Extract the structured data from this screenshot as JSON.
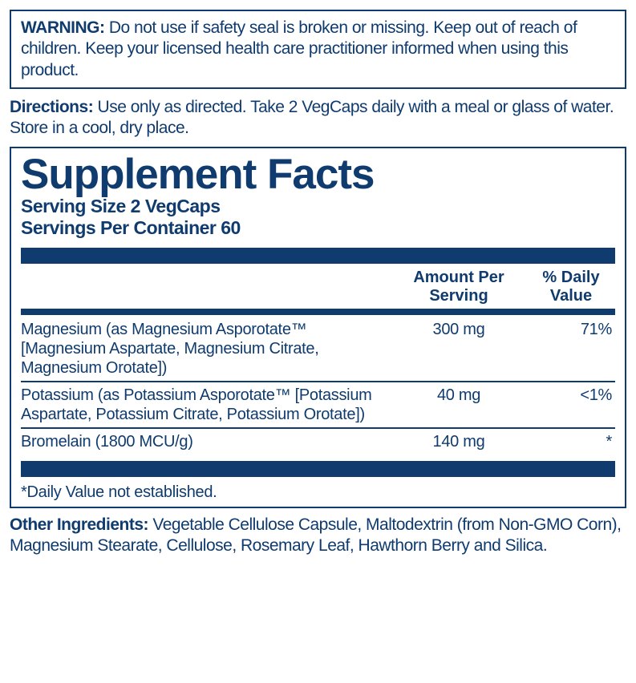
{
  "warning": {
    "label": "WARNING:",
    "text": " Do not use if safety seal is broken or missing. Keep out of reach of children. Keep your licensed health care practitioner informed when using this product."
  },
  "directions": {
    "label": "Directions:",
    "text": " Use only as directed. Take 2 VegCaps daily with a meal or glass of water.  Store in a cool, dry place."
  },
  "facts": {
    "title": "Supplement Facts",
    "serving_size": "Serving Size 2 VegCaps",
    "servings_per_container": "Servings Per Container 60",
    "headers": {
      "amount": "Amount Per Serving",
      "dv": "% Daily Value"
    },
    "rows": [
      {
        "name": "Magnesium (as Magnesium Asporotate™ [Magnesium Aspartate, Magnesium Citrate, Magnesium Orotate])",
        "amount": "300 mg",
        "dv": "71%"
      },
      {
        "name": "Potassium (as Potassium Asporotate™ [Potassium Aspartate, Potassium Citrate, Potassium Orotate])",
        "amount": "40 mg",
        "dv": "<1%"
      },
      {
        "name": "Bromelain (1800 MCU/g)",
        "amount": "140 mg",
        "dv": "*"
      }
    ],
    "footnote": "*Daily Value not established."
  },
  "other_ingredients": {
    "label": "Other Ingredients:",
    "text": " Vegetable Cellulose Capsule, Maltodextrin (from Non-GMO Corn), Magnesium Stearate, Cellulose, Rosemary Leaf, Hawthorn Berry and Silica."
  },
  "colors": {
    "primary": "#0f3b6e",
    "background": "#ffffff"
  }
}
